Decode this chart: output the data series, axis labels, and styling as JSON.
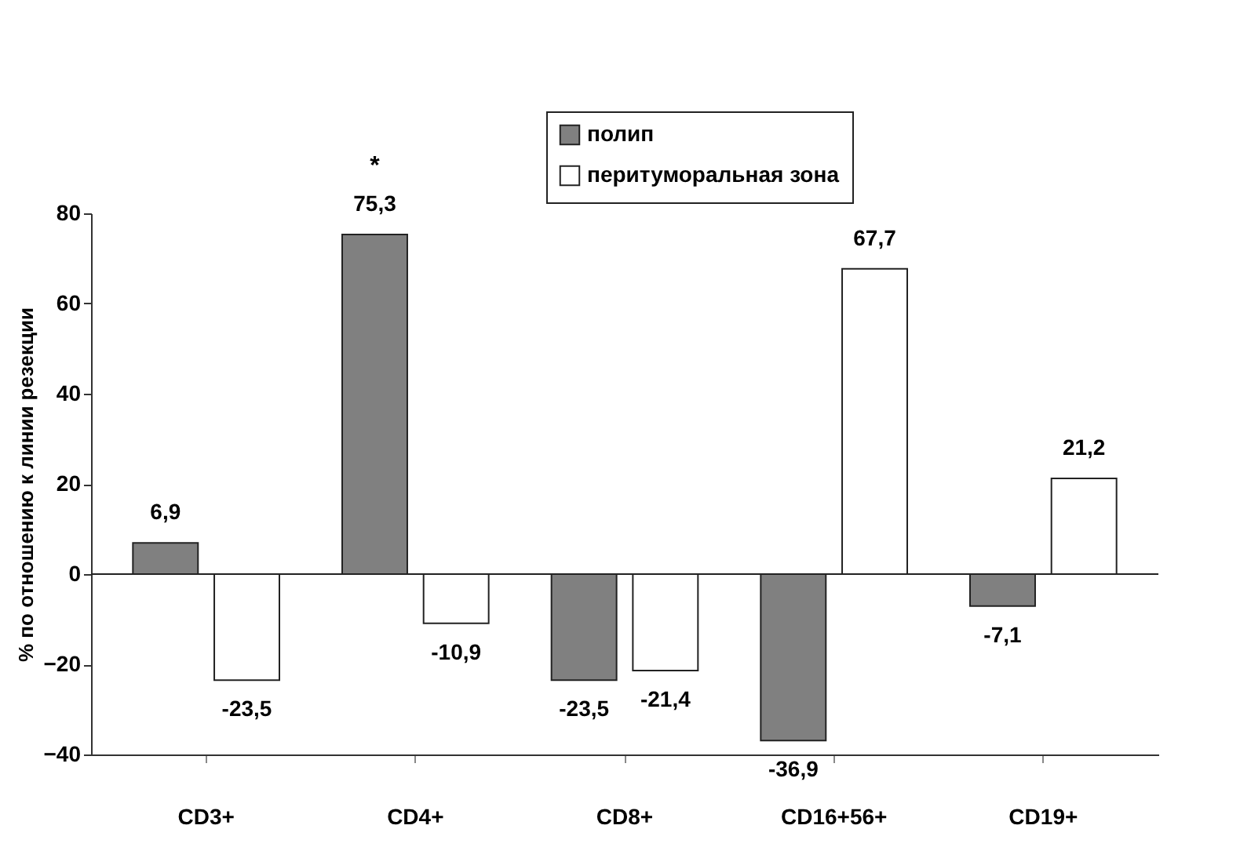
{
  "chart_data": {
    "type": "bar",
    "categories": [
      "CD3+",
      "CD4+",
      "CD8+",
      "CD16+56+",
      "CD19+"
    ],
    "ylabel": "% по отношению к линии резекции",
    "series": [
      {
        "name": "полип",
        "color": "#808080",
        "values": [
          6.9,
          75.3,
          -23.5,
          -36.9,
          -7.1
        ],
        "value_labels": [
          "6,9",
          "75,3",
          "-23,5",
          "-36,9",
          "-7,1"
        ]
      },
      {
        "name": "перитуморальная зона",
        "color": "#ffffff",
        "values": [
          -23.5,
          -10.9,
          -21.4,
          67.7,
          21.2
        ],
        "value_labels": [
          "-23,5",
          "-10,9",
          "-21,4",
          "67,7",
          "21,2"
        ]
      }
    ],
    "annotations": [
      "*"
    ],
    "ylim": [
      -40,
      80
    ],
    "yticks": [
      -40,
      -20,
      0,
      20,
      40,
      60,
      80
    ],
    "ref_lines": [
      {
        "axis": "y",
        "value": 0
      }
    ],
    "grid": false,
    "legend": "top"
  }
}
